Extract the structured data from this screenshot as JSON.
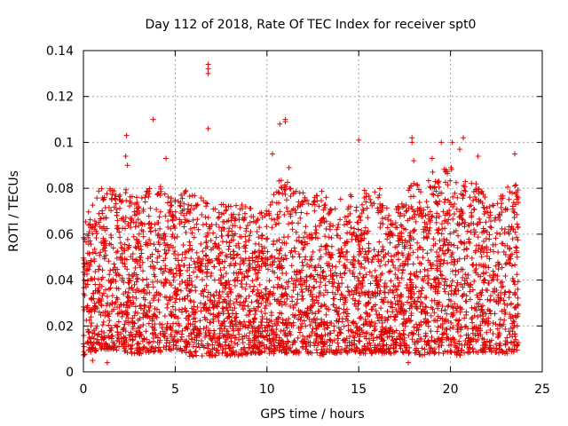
{
  "chart_data": {
    "type": "scatter",
    "title": "Day 112 of 2018, Rate Of TEC Index for receiver spt0",
    "xlabel": "GPS time / hours",
    "ylabel": "ROTI / TECUs",
    "xlim": [
      0,
      25
    ],
    "ylim": [
      0,
      0.14
    ],
    "x_ticks": [
      0,
      5,
      10,
      15,
      20,
      25
    ],
    "y_ticks": [
      0,
      0.02,
      0.04,
      0.06,
      0.08,
      0.1,
      0.12,
      0.14
    ],
    "x_tick_labels": [
      "0",
      "5",
      "10",
      "15",
      "20",
      "25"
    ],
    "y_tick_labels": [
      "0",
      "0.02",
      "0.04",
      "0.06",
      "0.08",
      "0.1",
      "0.12",
      "0.14"
    ],
    "grid": true,
    "marker": "+",
    "color": "#e00000",
    "series": [
      {
        "name": "ROTI",
        "data_range_x": [
          0,
          23.7
        ],
        "envelope": [
          [
            0.0,
            0.007,
            0.065
          ],
          [
            0.5,
            0.008,
            0.075
          ],
          [
            1.0,
            0.009,
            0.083
          ],
          [
            1.5,
            0.01,
            0.08
          ],
          [
            2.0,
            0.009,
            0.078
          ],
          [
            2.5,
            0.008,
            0.083
          ],
          [
            3.0,
            0.008,
            0.075
          ],
          [
            3.5,
            0.008,
            0.08
          ],
          [
            4.0,
            0.009,
            0.083
          ],
          [
            4.5,
            0.008,
            0.078
          ],
          [
            5.0,
            0.01,
            0.075
          ],
          [
            5.5,
            0.008,
            0.08
          ],
          [
            6.0,
            0.006,
            0.078
          ],
          [
            6.5,
            0.007,
            0.076
          ],
          [
            7.0,
            0.007,
            0.074
          ],
          [
            7.5,
            0.007,
            0.073
          ],
          [
            8.0,
            0.007,
            0.073
          ],
          [
            8.5,
            0.007,
            0.073
          ],
          [
            9.0,
            0.008,
            0.072
          ],
          [
            9.5,
            0.008,
            0.07
          ],
          [
            10.0,
            0.008,
            0.072
          ],
          [
            10.5,
            0.008,
            0.085
          ],
          [
            11.0,
            0.008,
            0.085
          ],
          [
            11.5,
            0.008,
            0.08
          ],
          [
            12.0,
            0.008,
            0.078
          ],
          [
            12.5,
            0.008,
            0.075
          ],
          [
            13.0,
            0.007,
            0.08
          ],
          [
            13.5,
            0.008,
            0.078
          ],
          [
            14.0,
            0.008,
            0.076
          ],
          [
            14.5,
            0.008,
            0.078
          ],
          [
            15.0,
            0.008,
            0.072
          ],
          [
            15.5,
            0.008,
            0.086
          ],
          [
            16.0,
            0.008,
            0.082
          ],
          [
            16.5,
            0.008,
            0.075
          ],
          [
            17.0,
            0.008,
            0.072
          ],
          [
            17.5,
            0.008,
            0.075
          ],
          [
            18.0,
            0.008,
            0.085
          ],
          [
            18.5,
            0.007,
            0.078
          ],
          [
            19.0,
            0.008,
            0.088
          ],
          [
            19.5,
            0.008,
            0.09
          ],
          [
            20.0,
            0.008,
            0.09
          ],
          [
            20.5,
            0.007,
            0.085
          ],
          [
            21.0,
            0.008,
            0.085
          ],
          [
            21.5,
            0.008,
            0.082
          ],
          [
            22.0,
            0.008,
            0.075
          ],
          [
            22.5,
            0.008,
            0.075
          ],
          [
            23.0,
            0.008,
            0.08
          ],
          [
            23.5,
            0.008,
            0.082
          ]
        ],
        "outliers": [
          [
            6.8,
            0.134
          ],
          [
            6.8,
            0.132
          ],
          [
            6.8,
            0.13
          ],
          [
            6.8,
            0.106
          ],
          [
            3.8,
            0.11
          ],
          [
            10.7,
            0.108
          ],
          [
            11.0,
            0.11
          ],
          [
            11.0,
            0.109
          ],
          [
            2.35,
            0.103
          ],
          [
            15.0,
            0.101
          ],
          [
            17.9,
            0.102
          ],
          [
            17.9,
            0.1
          ],
          [
            19.5,
            0.1
          ],
          [
            20.1,
            0.1
          ],
          [
            20.7,
            0.102
          ],
          [
            20.5,
            0.097
          ],
          [
            4.5,
            0.093
          ],
          [
            10.3,
            0.095
          ],
          [
            2.3,
            0.094
          ],
          [
            2.4,
            0.09
          ],
          [
            11.2,
            0.089
          ],
          [
            23.5,
            0.095
          ],
          [
            18.0,
            0.092
          ],
          [
            19.0,
            0.093
          ],
          [
            21.5,
            0.094
          ],
          [
            17.7,
            0.004
          ],
          [
            0.5,
            0.005
          ],
          [
            1.3,
            0.004
          ]
        ]
      }
    ]
  }
}
